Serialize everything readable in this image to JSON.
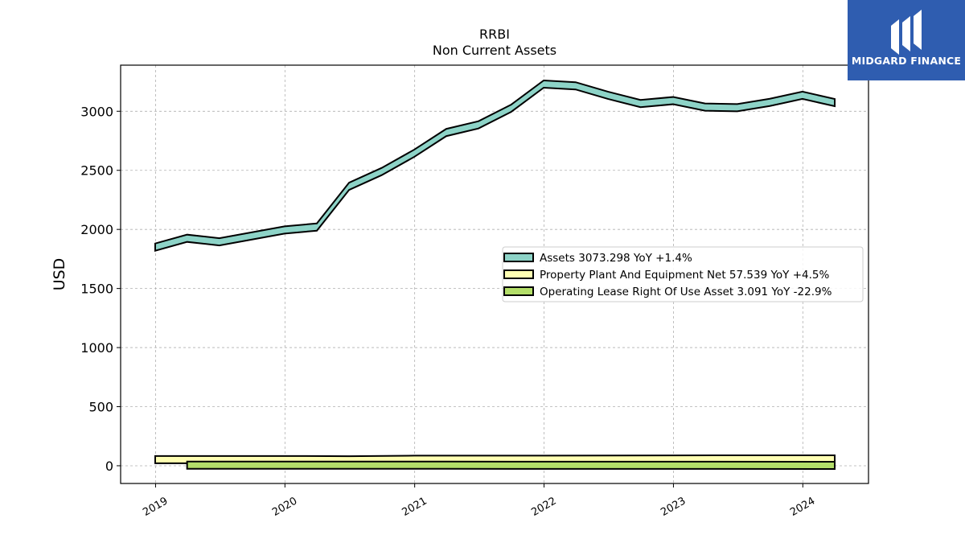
{
  "brand": {
    "name": "MIDGARD FINANCE",
    "bg_color": "#2f5db0"
  },
  "chart_data": {
    "type": "area",
    "title": "RRBI",
    "subtitle": "Non Current  Assets",
    "ylabel": "USD",
    "xlabel": "",
    "ylim": [
      -150,
      3390
    ],
    "yticks": [
      0,
      500,
      1000,
      1500,
      2000,
      2500,
      3000
    ],
    "xticks": [
      "2019",
      "2020",
      "2021",
      "2022",
      "2023",
      "2024"
    ],
    "grid": true,
    "legend_position": "center-right",
    "series": [
      {
        "name": "Assets",
        "legend": "Assets  3073.298 YoY +1.4%",
        "color": "#8dd3c7",
        "x": [
          "2018-12-31",
          "2019-03-31",
          "2019-06-30",
          "2019-09-30",
          "2019-12-31",
          "2020-03-31",
          "2020-06-30",
          "2020-09-30",
          "2020-12-31",
          "2021-03-31",
          "2021-06-30",
          "2021-09-30",
          "2021-12-31",
          "2022-03-31",
          "2022-06-30",
          "2022-09-30",
          "2022-12-31",
          "2023-03-31",
          "2023-06-30",
          "2023-09-30",
          "2023-12-31",
          "2024-03-31"
        ],
        "values": [
          1850,
          1925,
          1895,
          1945,
          1995,
          2020,
          2365,
          2490,
          2645,
          2820,
          2885,
          3025,
          3230,
          3215,
          3135,
          3065,
          3090,
          3035,
          3030,
          3075,
          3135,
          3073.298
        ]
      },
      {
        "name": "Property Plant And Equipment Net",
        "legend": "Property Plant And Equipment Net  57.539 YoY +4.5%",
        "color": "#ffffb3",
        "x": [
          "2018-12-31",
          "2019-12-31",
          "2020-06-30",
          "2020-12-31",
          "2021-12-31",
          "2022-12-31",
          "2023-12-31",
          "2024-03-31"
        ],
        "values": [
          52,
          52,
          50,
          55,
          55,
          57,
          58,
          57.539
        ]
      },
      {
        "name": "Operating Lease Right Of Use Asset",
        "legend": "Operating Lease Right Of Use Asset  3.091 YoY -22.9%",
        "color": "#b3de69",
        "x": [
          "2019-03-31",
          "2020-03-31",
          "2021-03-31",
          "2022-03-31",
          "2023-03-31",
          "2024-03-31"
        ],
        "values": [
          5,
          5,
          4.5,
          4,
          4,
          3.091
        ]
      }
    ]
  }
}
